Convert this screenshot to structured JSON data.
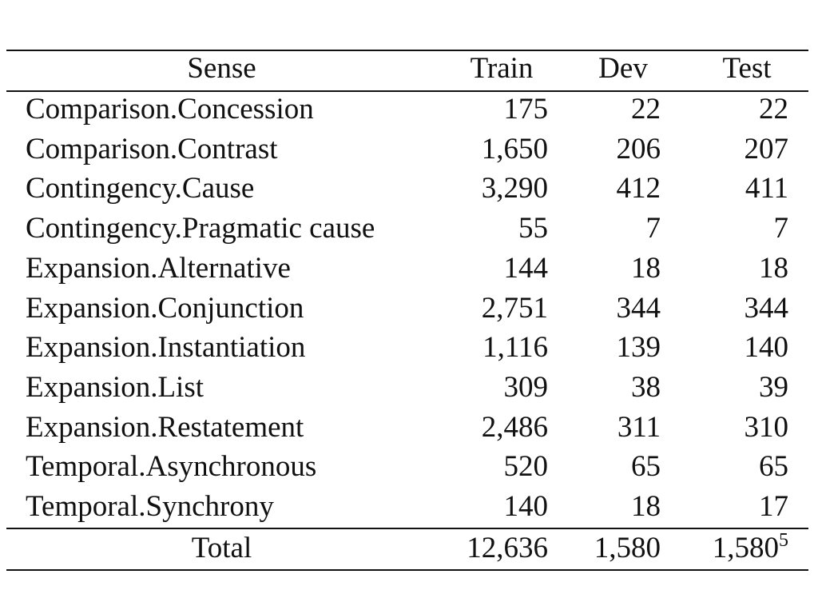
{
  "table": {
    "headers": [
      "Sense",
      "Train",
      "Dev",
      "Test"
    ],
    "rows": [
      {
        "sense": "Comparison.Concession",
        "train": "175",
        "dev": "22",
        "test": "22"
      },
      {
        "sense": "Comparison.Contrast",
        "train": "1,650",
        "dev": "206",
        "test": "207"
      },
      {
        "sense": "Contingency.Cause",
        "train": "3,290",
        "dev": "412",
        "test": "411"
      },
      {
        "sense": "Contingency.Pragmatic cause",
        "train": "55",
        "dev": "7",
        "test": "7"
      },
      {
        "sense": "Expansion.Alternative",
        "train": "144",
        "dev": "18",
        "test": "18"
      },
      {
        "sense": "Expansion.Conjunction",
        "train": "2,751",
        "dev": "344",
        "test": "344"
      },
      {
        "sense": "Expansion.Instantiation",
        "train": "1,116",
        "dev": "139",
        "test": "140"
      },
      {
        "sense": "Expansion.List",
        "train": "309",
        "dev": "38",
        "test": "39"
      },
      {
        "sense": "Expansion.Restatement",
        "train": "2,486",
        "dev": "311",
        "test": "310"
      },
      {
        "sense": "Temporal.Asynchronous",
        "train": "520",
        "dev": "65",
        "test": "65"
      },
      {
        "sense": "Temporal.Synchrony",
        "train": "140",
        "dev": "18",
        "test": "17"
      }
    ],
    "total": {
      "label": "Total",
      "train": "12,636",
      "dev": "1,580",
      "test": "1,580",
      "test_footnote": "5"
    }
  }
}
